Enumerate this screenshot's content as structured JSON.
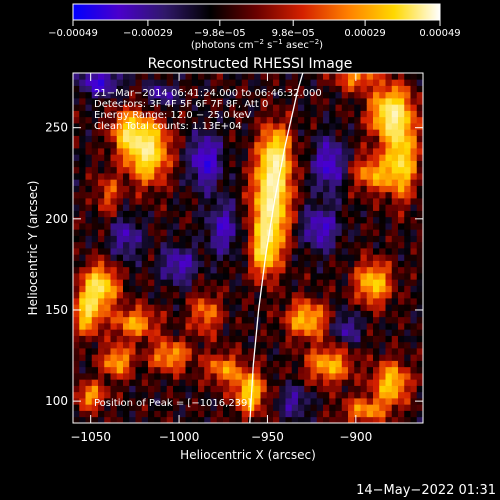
{
  "chart_data": {
    "type": "heatmap",
    "title": "Reconstructed RHESSI Image",
    "xlabel": "Heliocentric X (arcsec)",
    "ylabel": "Heliocentric Y (arcsec)",
    "xlim": [
      -1060,
      -862
    ],
    "ylim": [
      88,
      280
    ],
    "x_ticks": [
      -1050,
      -1000,
      -950,
      -900
    ],
    "x_tick_labels": [
      "−1050",
      "−1000",
      "−950",
      "−900"
    ],
    "y_ticks": [
      100,
      150,
      200,
      250
    ],
    "y_tick_labels": [
      "100",
      "150",
      "200",
      "250"
    ],
    "colorbar": {
      "ticks": [
        -0.00049,
        -0.00029,
        -9.8e-05,
        9.8e-05,
        0.00029,
        0.00049
      ],
      "tick_labels": [
        "−0.00049",
        "−0.00029",
        "−9.8e−05",
        "9.8e−05",
        "0.00029",
        "0.00049"
      ],
      "range": [
        -0.00049,
        0.00049
      ],
      "units_main": "(photons cm",
      "units_sup1": "−2",
      "units_mid": " s",
      "units_sup2": "−1",
      "units_end": " asec",
      "units_sup3": "−2",
      "units_close": ")",
      "colormap": [
        "#0000ff",
        "#4a00cc",
        "#30186a",
        "#000000",
        "#6a0000",
        "#d42000",
        "#ff8000",
        "#ffd800",
        "#ffffff"
      ]
    },
    "annotations": {
      "time_range": "21−Mar−2014 06:41:24.000 to 06:46:32.000",
      "detectors": "Detectors: 3F 4F 5F 6F 7F 8F, Att 0",
      "energy": "Energy Range: 12.0 − 25.0 keV",
      "clean": "Clean    Total counts: 1.13E+04",
      "peak": "Position of Peak = [−1016,239]"
    },
    "limb_curve": [
      [
        -960,
        88
      ],
      [
        -958,
        120
      ],
      [
        -955,
        150
      ],
      [
        -951,
        180
      ],
      [
        -946,
        210
      ],
      [
        -940,
        240
      ],
      [
        -933,
        270
      ],
      [
        -930,
        280
      ]
    ],
    "intensity_scale": "0 = strong negative (blue), 0.5 = zero (black), 1 = peak (white)",
    "features": [
      {
        "x": -1018,
        "y": 238,
        "amp": 0.95,
        "sx": 8,
        "sy": 12
      },
      {
        "x": -1030,
        "y": 248,
        "amp": 0.6,
        "sx": 6,
        "sy": 8
      },
      {
        "x": -1040,
        "y": 214,
        "amp": 0.35,
        "sx": 5,
        "sy": 8
      },
      {
        "x": -948,
        "y": 208,
        "amp": 1.0,
        "sx": 7,
        "sy": 18
      },
      {
        "x": -945,
        "y": 235,
        "amp": 0.7,
        "sx": 6,
        "sy": 12
      },
      {
        "x": -952,
        "y": 182,
        "amp": 0.6,
        "sx": 5,
        "sy": 10
      },
      {
        "x": -880,
        "y": 258,
        "amp": 0.95,
        "sx": 8,
        "sy": 10
      },
      {
        "x": -874,
        "y": 232,
        "amp": 0.75,
        "sx": 6,
        "sy": 14
      },
      {
        "x": -890,
        "y": 225,
        "amp": 0.55,
        "sx": 8,
        "sy": 7
      },
      {
        "x": -900,
        "y": 278,
        "amp": 0.5,
        "sx": 8,
        "sy": 5
      },
      {
        "x": -1045,
        "y": 163,
        "amp": 0.85,
        "sx": 7,
        "sy": 8
      },
      {
        "x": -1052,
        "y": 148,
        "amp": 0.7,
        "sx": 5,
        "sy": 8
      },
      {
        "x": -1025,
        "y": 143,
        "amp": 0.55,
        "sx": 9,
        "sy": 6
      },
      {
        "x": -1035,
        "y": 122,
        "amp": 0.6,
        "sx": 6,
        "sy": 6
      },
      {
        "x": -1005,
        "y": 125,
        "amp": 0.55,
        "sx": 8,
        "sy": 6
      },
      {
        "x": -985,
        "y": 148,
        "amp": 0.45,
        "sx": 6,
        "sy": 8
      },
      {
        "x": -975,
        "y": 118,
        "amp": 0.5,
        "sx": 7,
        "sy": 6
      },
      {
        "x": -1050,
        "y": 103,
        "amp": 0.55,
        "sx": 6,
        "sy": 5
      },
      {
        "x": -960,
        "y": 105,
        "amp": 0.75,
        "sx": 6,
        "sy": 8
      },
      {
        "x": -928,
        "y": 145,
        "amp": 0.65,
        "sx": 8,
        "sy": 7
      },
      {
        "x": -915,
        "y": 120,
        "amp": 0.6,
        "sx": 9,
        "sy": 7
      },
      {
        "x": -890,
        "y": 165,
        "amp": 0.7,
        "sx": 7,
        "sy": 8
      },
      {
        "x": -880,
        "y": 110,
        "amp": 0.7,
        "sx": 7,
        "sy": 8
      },
      {
        "x": -895,
        "y": 95,
        "amp": 0.5,
        "sx": 9,
        "sy": 5
      },
      {
        "x": -1045,
        "y": 275,
        "amp": -0.55,
        "sx": 8,
        "sy": 5
      },
      {
        "x": -1010,
        "y": 268,
        "amp": -0.4,
        "sx": 6,
        "sy": 5
      },
      {
        "x": -985,
        "y": 232,
        "amp": -0.6,
        "sx": 6,
        "sy": 10
      },
      {
        "x": -975,
        "y": 195,
        "amp": -0.45,
        "sx": 6,
        "sy": 10
      },
      {
        "x": -915,
        "y": 230,
        "amp": -0.55,
        "sx": 6,
        "sy": 10
      },
      {
        "x": -920,
        "y": 195,
        "amp": -0.5,
        "sx": 7,
        "sy": 8
      },
      {
        "x": -1000,
        "y": 175,
        "amp": -0.45,
        "sx": 7,
        "sy": 7
      },
      {
        "x": -1030,
        "y": 190,
        "amp": -0.4,
        "sx": 6,
        "sy": 8
      },
      {
        "x": -935,
        "y": 100,
        "amp": -0.35,
        "sx": 6,
        "sy": 6
      },
      {
        "x": -905,
        "y": 140,
        "amp": -0.4,
        "sx": 5,
        "sy": 6
      }
    ]
  },
  "footer": {
    "date": "14−May−2022 01:31"
  },
  "colors": {
    "background": "#000000",
    "text": "#ffffff",
    "limb": "#ffffff"
  }
}
